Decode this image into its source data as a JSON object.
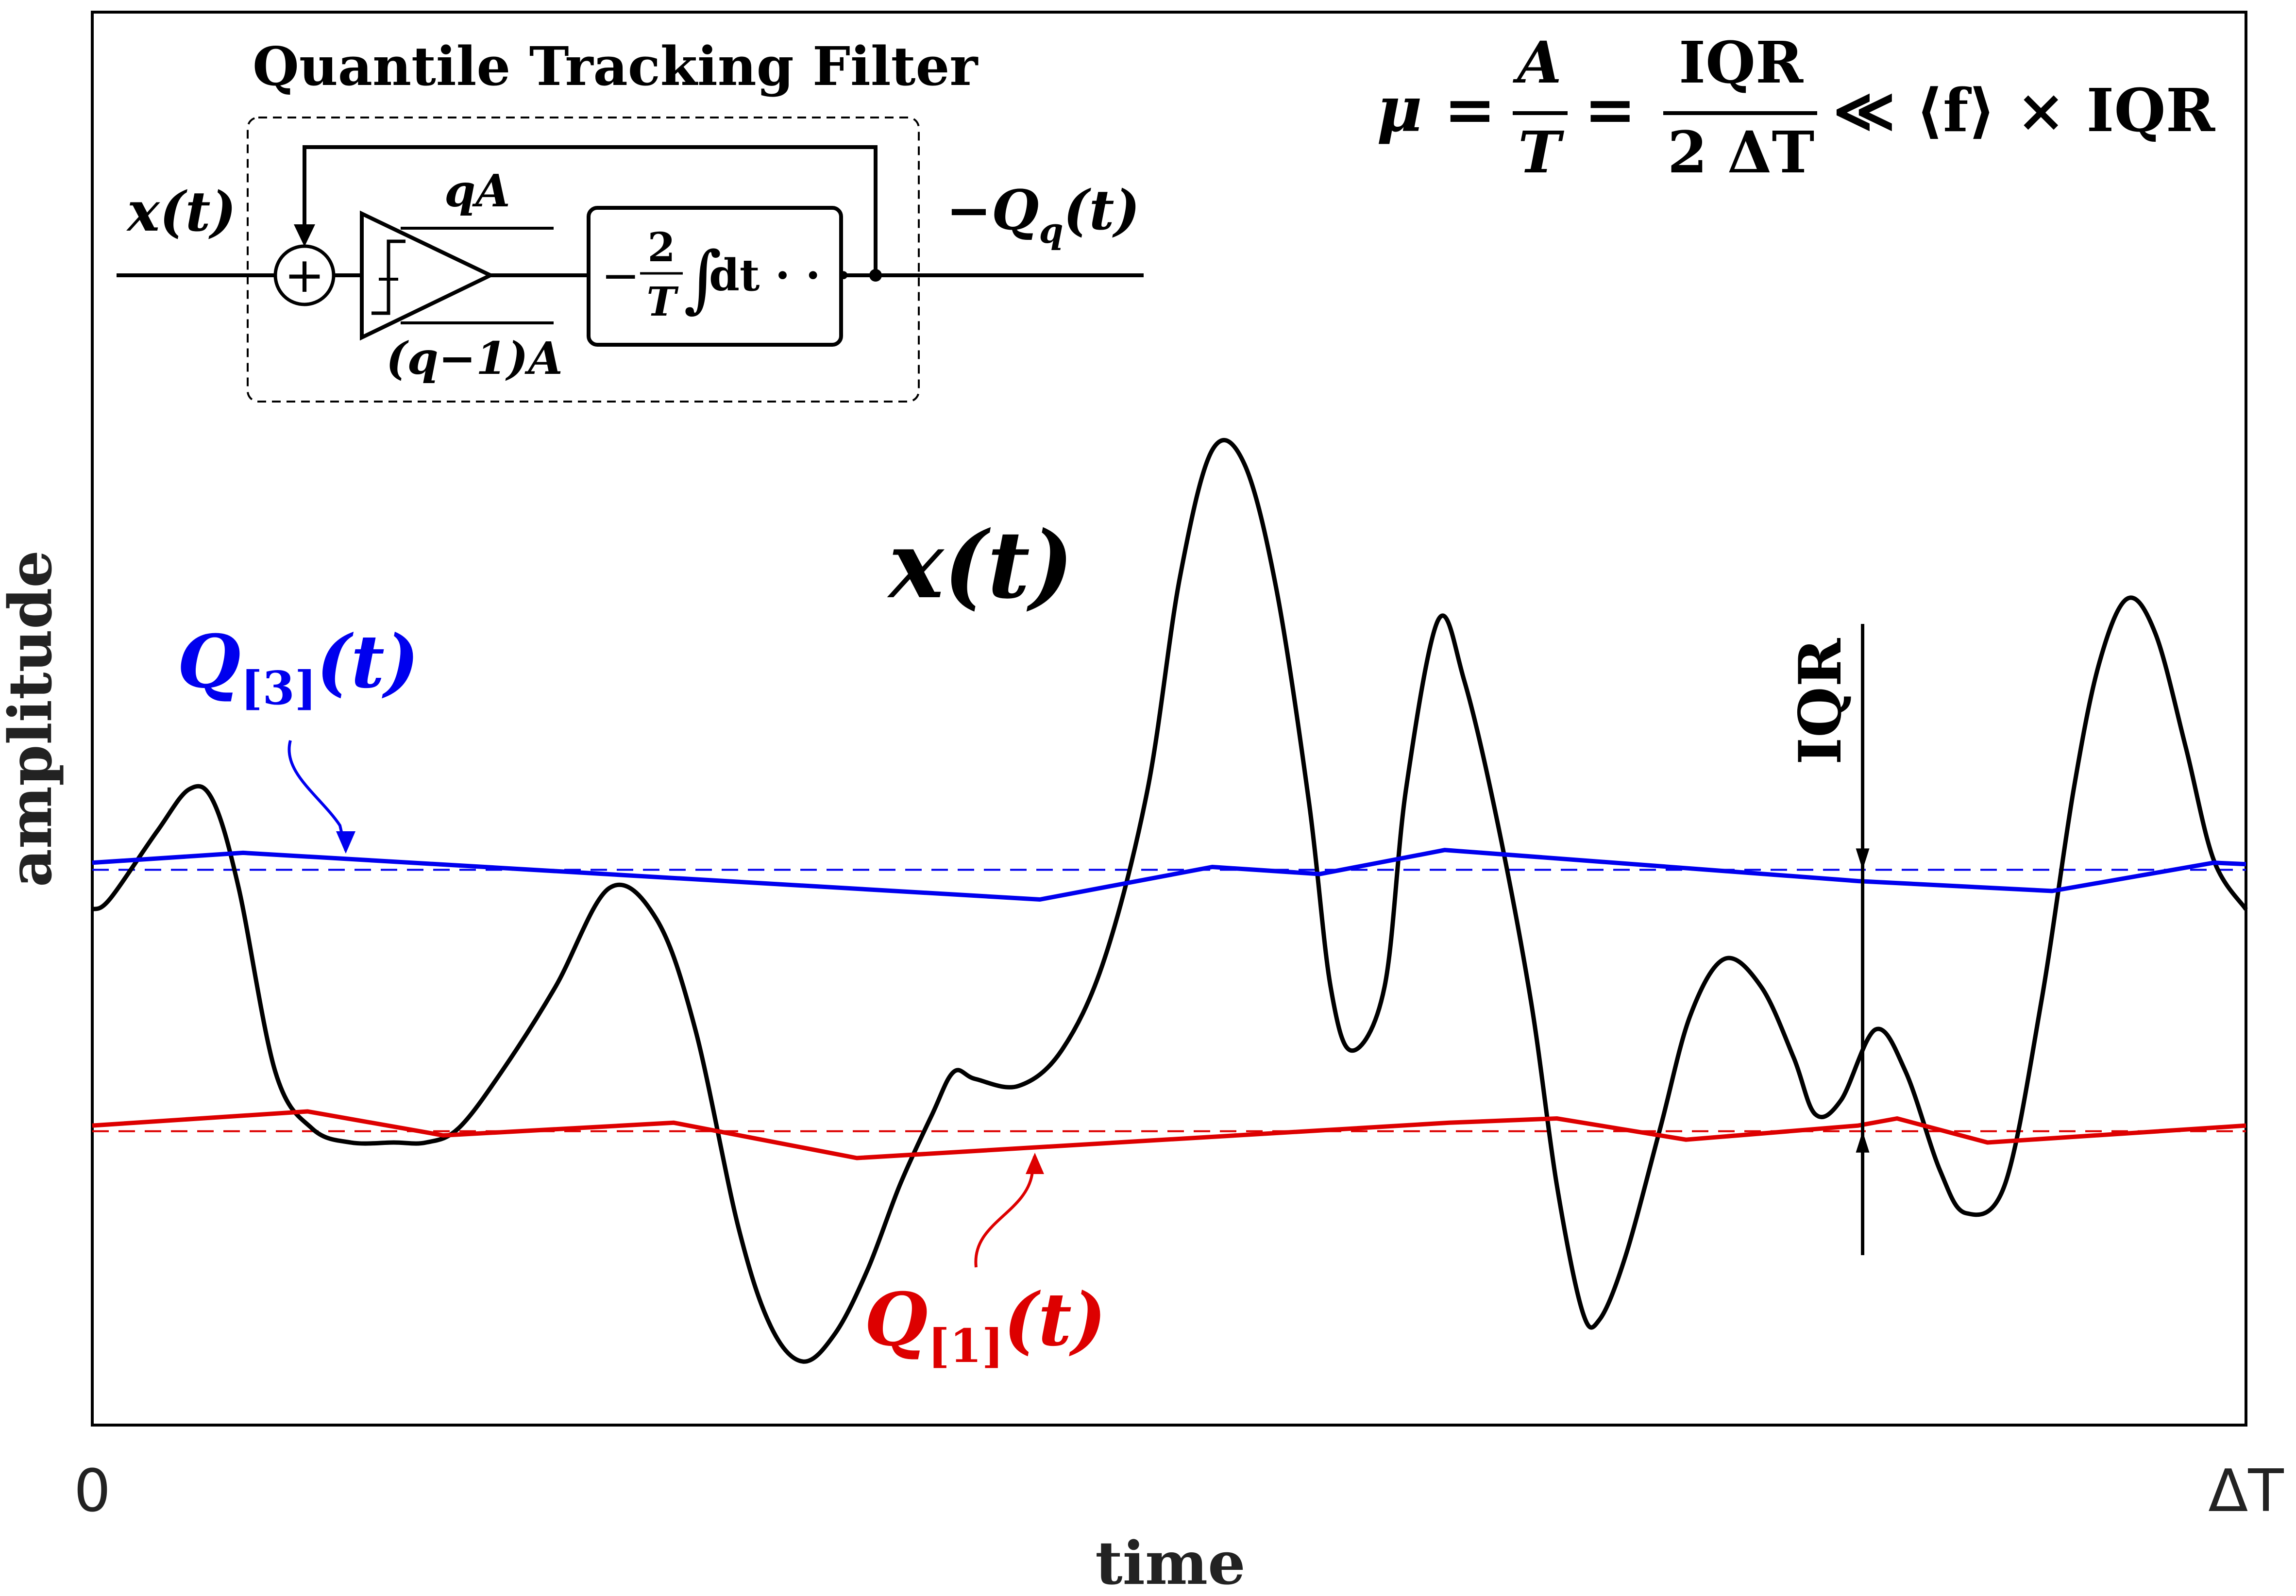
{
  "axes": {
    "xlabel": "time",
    "ylabel": "amplitude",
    "xtick_start": "0",
    "xtick_end": "ΔT"
  },
  "block_diagram": {
    "title": "Quantile Tracking Filter",
    "input_label_main": "x",
    "input_label_arg": "(t)",
    "output_label_prefix": "−Q",
    "output_label_sub": "q",
    "output_label_arg": "(t)",
    "sum_symbol": "+",
    "upper_level": "qA",
    "lower_level": "(q−1)A",
    "integrator_sign": "−",
    "integrator_num": "2",
    "integrator_den": "T",
    "integrator_op": "∫",
    "integrator_body": "dt · · ·"
  },
  "equation": {
    "lhs": "μ =",
    "frac1_num": "A",
    "frac1_den": "T",
    "eq2": "=",
    "frac2_num": "IQR",
    "frac2_den": "2 ΔT",
    "rhs": "≪ ⟨f⟩ × IQR"
  },
  "labels": {
    "signal_main": "x",
    "signal_arg": "(t)",
    "q3_main": "Q",
    "q3_sub": "[3]",
    "q3_arg": "(t)",
    "q1_main": "Q",
    "q1_sub": "[1]",
    "q1_arg": "(t)",
    "iqr": "IQR"
  },
  "colors": {
    "signal": "#000000",
    "q3": "#0000ee",
    "q1": "#dd0000",
    "frame": "#000000"
  },
  "chart_data": {
    "type": "line",
    "x_range": [
      0,
      1
    ],
    "y_range": [
      0,
      1
    ],
    "grid": false,
    "series": [
      {
        "name": "x(t)",
        "points": [
          [
            0.0,
            0.365
          ],
          [
            0.008,
            0.372
          ],
          [
            0.03,
            0.42
          ],
          [
            0.045,
            0.45
          ],
          [
            0.056,
            0.442
          ],
          [
            0.068,
            0.38
          ],
          [
            0.085,
            0.25
          ],
          [
            0.102,
            0.21
          ],
          [
            0.12,
            0.2
          ],
          [
            0.14,
            0.2
          ],
          [
            0.155,
            0.2
          ],
          [
            0.17,
            0.21
          ],
          [
            0.19,
            0.25
          ],
          [
            0.215,
            0.31
          ],
          [
            0.24,
            0.38
          ],
          [
            0.262,
            0.358
          ],
          [
            0.28,
            0.28
          ],
          [
            0.3,
            0.14
          ],
          [
            0.315,
            0.07
          ],
          [
            0.33,
            0.045
          ],
          [
            0.345,
            0.065
          ],
          [
            0.36,
            0.11
          ],
          [
            0.375,
            0.17
          ],
          [
            0.39,
            0.22
          ],
          [
            0.4,
            0.25
          ],
          [
            0.41,
            0.245
          ],
          [
            0.43,
            0.24
          ],
          [
            0.45,
            0.265
          ],
          [
            0.47,
            0.33
          ],
          [
            0.49,
            0.45
          ],
          [
            0.505,
            0.6
          ],
          [
            0.52,
            0.69
          ],
          [
            0.535,
            0.68
          ],
          [
            0.55,
            0.59
          ],
          [
            0.565,
            0.44
          ],
          [
            0.575,
            0.31
          ],
          [
            0.585,
            0.265
          ],
          [
            0.6,
            0.31
          ],
          [
            0.61,
            0.45
          ],
          [
            0.625,
            0.57
          ],
          [
            0.637,
            0.527
          ],
          [
            0.652,
            0.43
          ],
          [
            0.668,
            0.3
          ],
          [
            0.68,
            0.17
          ],
          [
            0.692,
            0.08
          ],
          [
            0.7,
            0.075
          ],
          [
            0.712,
            0.12
          ],
          [
            0.728,
            0.21
          ],
          [
            0.742,
            0.29
          ],
          [
            0.758,
            0.33
          ],
          [
            0.775,
            0.31
          ],
          [
            0.79,
            0.26
          ],
          [
            0.8,
            0.22
          ],
          [
            0.812,
            0.23
          ],
          [
            0.828,
            0.28
          ],
          [
            0.842,
            0.25
          ],
          [
            0.858,
            0.18
          ],
          [
            0.87,
            0.15
          ],
          [
            0.888,
            0.17
          ],
          [
            0.905,
            0.3
          ],
          [
            0.92,
            0.45
          ],
          [
            0.932,
            0.54
          ],
          [
            0.945,
            0.585
          ],
          [
            0.958,
            0.56
          ],
          [
            0.972,
            0.48
          ],
          [
            0.985,
            0.4
          ],
          [
            1.0,
            0.365
          ]
        ]
      },
      {
        "name": "Q[3](t)",
        "points": [
          [
            0.0,
            0.398
          ],
          [
            0.07,
            0.405
          ],
          [
            0.44,
            0.372
          ],
          [
            0.52,
            0.395
          ],
          [
            0.57,
            0.39
          ],
          [
            0.628,
            0.407
          ],
          [
            0.82,
            0.385
          ],
          [
            0.91,
            0.378
          ],
          [
            0.985,
            0.398
          ],
          [
            1.0,
            0.397
          ]
        ],
        "quantile_level": 0.393
      },
      {
        "name": "Q[1](t)",
        "points": [
          [
            0.0,
            0.212
          ],
          [
            0.1,
            0.222
          ],
          [
            0.163,
            0.205
          ],
          [
            0.27,
            0.214
          ],
          [
            0.355,
            0.189
          ],
          [
            0.63,
            0.214
          ],
          [
            0.68,
            0.217
          ],
          [
            0.74,
            0.202
          ],
          [
            0.82,
            0.212
          ],
          [
            0.838,
            0.217
          ],
          [
            0.88,
            0.2
          ],
          [
            1.0,
            0.212
          ]
        ],
        "quantile_level": 0.208
      }
    ],
    "iqr_marker_x": 0.822
  }
}
